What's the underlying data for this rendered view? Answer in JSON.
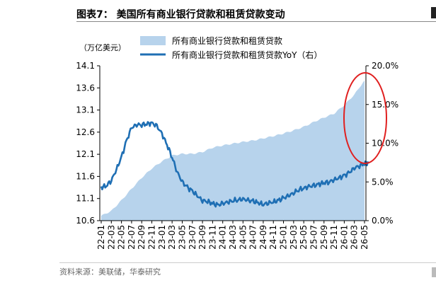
{
  "header": {
    "title": "图表7：  美国所有商业银行贷款和租赁贷款变动"
  },
  "footer": {
    "source": "资料来源：美联储，华泰研究"
  },
  "chart_data": {
    "type": "area",
    "unit_label": "（万亿美元）",
    "left_axis": {
      "ticks": [
        "14.1",
        "13.6",
        "13.1",
        "12.6",
        "12.1",
        "11.6",
        "11.1",
        "10.6"
      ],
      "ylim": [
        10.6,
        14.1
      ]
    },
    "right_axis": {
      "ticks": [
        "20.0%",
        "15.0%",
        "10.0%",
        "5.0%",
        "0.0%"
      ],
      "ylim": [
        0,
        20
      ]
    },
    "x_tick_labels": [
      "22-01",
      "22-03",
      "22-05",
      "22-07",
      "22-09",
      "22-11",
      "23-01",
      "23-03",
      "23-05",
      "23-07",
      "23-09",
      "23-11",
      "24-01",
      "24-03",
      "24-05",
      "24-07",
      "24-09",
      "24-11",
      "25-01",
      "25-03",
      "25-05",
      "25-07",
      "25-09",
      "25-11",
      "26-01",
      "26-03",
      "26-05"
    ],
    "series": [
      {
        "name": "所有商业银行贷款和租赁贷款",
        "kind": "area",
        "axis": "left",
        "color": "#b7d3ec",
        "x": [
          0,
          1,
          2,
          3,
          4,
          5,
          6,
          7,
          8,
          9,
          10,
          11,
          12,
          13,
          14,
          15,
          16,
          17,
          18,
          19,
          20,
          21,
          22,
          23,
          24,
          25,
          26
        ],
        "values": [
          10.71,
          10.82,
          11.06,
          11.32,
          11.57,
          11.78,
          11.94,
          12.07,
          12.11,
          12.11,
          12.15,
          12.25,
          12.3,
          12.34,
          12.38,
          12.41,
          12.46,
          12.51,
          12.57,
          12.64,
          12.72,
          12.83,
          12.93,
          13.02,
          13.21,
          13.45,
          13.77
        ]
      },
      {
        "name": "所有商业银行贷款和租赁贷款YoY（右）",
        "kind": "line",
        "axis": "right",
        "color": "#1f6fb4",
        "x": [
          0,
          0.5,
          1,
          1.5,
          2,
          2.5,
          3,
          3.5,
          4,
          4.5,
          5,
          5.5,
          6,
          6.5,
          7,
          7.5,
          8,
          8.5,
          9,
          9.5,
          10,
          10.5,
          11,
          11.5,
          12,
          12.5,
          13,
          13.5,
          14,
          14.5,
          15,
          15.5,
          16,
          16.5,
          17,
          17.5,
          18,
          18.5,
          19,
          19.5,
          20,
          20.5,
          21,
          21.5,
          22,
          22.5,
          23,
          23.5,
          24,
          24.5,
          25,
          25.5,
          26,
          26.4
        ],
        "values": [
          4.3,
          4.5,
          5.2,
          6.6,
          8.2,
          10.3,
          12.0,
          12.4,
          12.4,
          12.5,
          12.6,
          12.2,
          11.2,
          9.8,
          8.2,
          6.3,
          5.0,
          4.3,
          3.8,
          3.2,
          2.6,
          2.5,
          2.2,
          2.0,
          2.2,
          2.4,
          2.6,
          2.7,
          2.8,
          2.6,
          2.5,
          2.3,
          2.1,
          2.3,
          2.4,
          2.6,
          2.9,
          3.2,
          3.6,
          4.0,
          4.2,
          4.4,
          4.5,
          4.7,
          4.9,
          5.0,
          5.3,
          5.5,
          5.8,
          6.2,
          6.8,
          7.1,
          7.4,
          7.5
        ]
      }
    ],
    "annotation": "red ellipse highlighting the most recent data",
    "legend_position": "top"
  }
}
